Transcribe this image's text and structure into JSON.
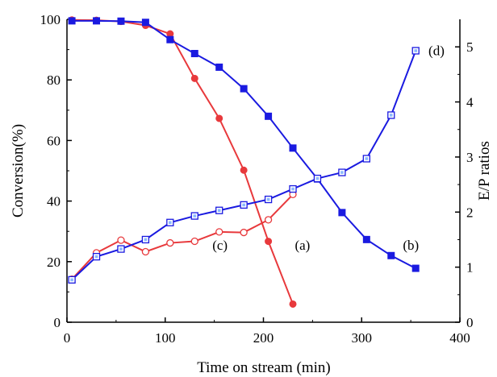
{
  "chart_data": {
    "type": "line",
    "xlabel": "Time on stream (min)",
    "ylabel_left": "Conversion(%)",
    "ylabel_right": "E/P ratios",
    "xlim": [
      0,
      400
    ],
    "ylim_left": [
      0,
      100
    ],
    "ylim_right": [
      0,
      5.5
    ],
    "x_ticks": [
      0,
      100,
      200,
      300,
      400
    ],
    "y_left_ticks": [
      0,
      20,
      40,
      60,
      80,
      100
    ],
    "y_right_ticks": [
      0,
      1,
      2,
      3,
      4,
      5
    ],
    "grid": false,
    "series": [
      {
        "name": "(a)",
        "axis": "left",
        "color": "#e8393c",
        "marker": "filled-circle",
        "x": [
          5,
          30,
          55,
          80,
          105,
          130,
          155,
          180,
          205,
          230
        ],
        "y": [
          99.8,
          99.7,
          99.3,
          98,
          95.2,
          80.5,
          67.3,
          50.2,
          26.7,
          6
        ]
      },
      {
        "name": "(b)",
        "axis": "left",
        "color": "#1a1ae0",
        "marker": "filled-square",
        "x": [
          5,
          30,
          55,
          80,
          105,
          130,
          155,
          180,
          205,
          230,
          255,
          280,
          305,
          330,
          355
        ],
        "y": [
          99.5,
          99.5,
          99.4,
          99,
          93.3,
          88.7,
          84.2,
          77.1,
          68,
          57.5,
          47.3,
          36.2,
          27.3,
          22,
          17.8
        ]
      },
      {
        "name": "(c)",
        "axis": "right",
        "color": "#e8393c",
        "marker": "open-circle",
        "x": [
          5,
          30,
          55,
          80,
          105,
          130,
          155,
          180,
          205,
          230
        ],
        "y": [
          0.78,
          1.26,
          1.49,
          1.28,
          1.44,
          1.47,
          1.64,
          1.63,
          1.86,
          2.32
        ]
      },
      {
        "name": "(d)",
        "axis": "right",
        "color": "#1a1ae0",
        "marker": "open-square",
        "x": [
          5,
          30,
          55,
          80,
          105,
          130,
          155,
          180,
          205,
          230,
          255,
          280,
          305,
          330,
          355
        ],
        "y": [
          0.77,
          1.19,
          1.33,
          1.5,
          1.81,
          1.93,
          2.03,
          2.13,
          2.23,
          2.42,
          2.61,
          2.72,
          2.97,
          3.76,
          4.93
        ]
      }
    ],
    "annotations": [
      {
        "text": "(a)",
        "x": 232,
        "y": 24
      },
      {
        "text": "(b)",
        "x": 342,
        "y": 24
      },
      {
        "text": "(c)",
        "x": 148,
        "y": 24
      },
      {
        "text": "(d)",
        "x": 368,
        "y": 4.85,
        "axis": "right"
      }
    ]
  }
}
